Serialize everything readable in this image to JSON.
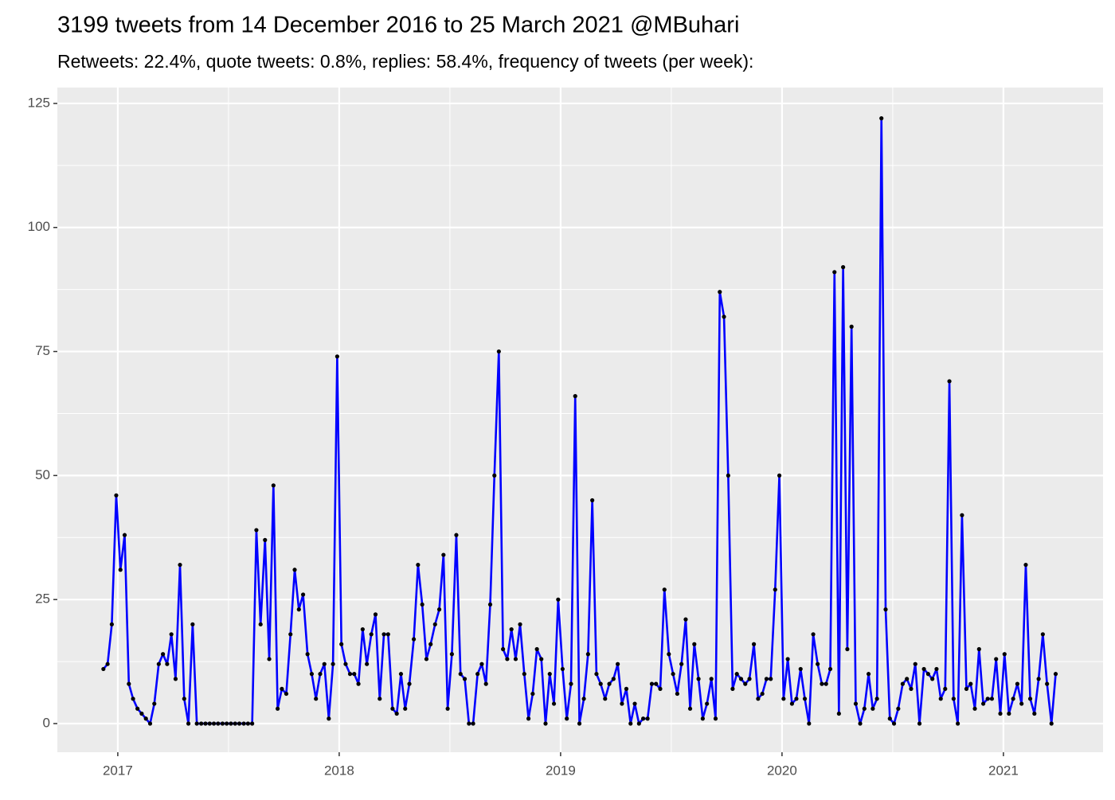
{
  "chart_data": {
    "type": "line",
    "title": "3199 tweets from 14 December 2016 to 25 March 2021 @MBuhari",
    "subtitle": "Retweets: 22.4%, quote tweets: 0.8%, replies: 58.4%, frequency of tweets (per week):",
    "color": "#0000ff",
    "point_color": "#000000",
    "grid": true,
    "xlim": [
      2016.727,
      2021.45
    ],
    "xticks": [
      2017,
      2018,
      2019,
      2020,
      2021
    ],
    "ylim": [
      -5.78,
      128.2
    ],
    "yticks": [
      0,
      25,
      50,
      75,
      100,
      125
    ],
    "x": [
      2016.935,
      2016.954,
      2016.973,
      2016.993,
      2017.012,
      2017.031,
      2017.05,
      2017.069,
      2017.089,
      2017.108,
      2017.127,
      2017.146,
      2017.165,
      2017.185,
      2017.204,
      2017.223,
      2017.242,
      2017.261,
      2017.281,
      2017.3,
      2017.319,
      2017.338,
      2017.357,
      2017.377,
      2017.396,
      2017.415,
      2017.434,
      2017.453,
      2017.473,
      2017.492,
      2017.511,
      2017.53,
      2017.549,
      2017.569,
      2017.588,
      2017.607,
      2017.626,
      2017.645,
      2017.665,
      2017.684,
      2017.703,
      2017.722,
      2017.741,
      2017.761,
      2017.78,
      2017.799,
      2017.818,
      2017.837,
      2017.857,
      2017.876,
      2017.895,
      2017.914,
      2017.933,
      2017.953,
      2017.972,
      2017.991,
      2018.01,
      2018.029,
      2018.049,
      2018.068,
      2018.087,
      2018.106,
      2018.125,
      2018.145,
      2018.164,
      2018.183,
      2018.202,
      2018.221,
      2018.241,
      2018.26,
      2018.279,
      2018.298,
      2018.317,
      2018.337,
      2018.356,
      2018.375,
      2018.394,
      2018.413,
      2018.433,
      2018.452,
      2018.471,
      2018.49,
      2018.509,
      2018.529,
      2018.548,
      2018.567,
      2018.586,
      2018.605,
      2018.625,
      2018.644,
      2018.663,
      2018.682,
      2018.701,
      2018.721,
      2018.74,
      2018.759,
      2018.778,
      2018.797,
      2018.817,
      2018.836,
      2018.855,
      2018.874,
      2018.893,
      2018.913,
      2018.932,
      2018.951,
      2018.97,
      2018.989,
      2019.009,
      2019.028,
      2019.047,
      2019.066,
      2019.085,
      2019.105,
      2019.124,
      2019.143,
      2019.162,
      2019.181,
      2019.201,
      2019.22,
      2019.239,
      2019.258,
      2019.277,
      2019.297,
      2019.316,
      2019.335,
      2019.354,
      2019.373,
      2019.393,
      2019.412,
      2019.431,
      2019.45,
      2019.469,
      2019.489,
      2019.508,
      2019.527,
      2019.546,
      2019.565,
      2019.585,
      2019.604,
      2019.623,
      2019.642,
      2019.661,
      2019.681,
      2019.7,
      2019.719,
      2019.738,
      2019.757,
      2019.777,
      2019.796,
      2019.815,
      2019.834,
      2019.853,
      2019.873,
      2019.892,
      2019.911,
      2019.93,
      2019.949,
      2019.969,
      2019.988,
      2020.007,
      2020.026,
      2020.045,
      2020.065,
      2020.084,
      2020.103,
      2020.122,
      2020.141,
      2020.161,
      2020.18,
      2020.199,
      2020.218,
      2020.237,
      2020.257,
      2020.276,
      2020.295,
      2020.314,
      2020.333,
      2020.353,
      2020.372,
      2020.391,
      2020.41,
      2020.429,
      2020.449,
      2020.468,
      2020.487,
      2020.506,
      2020.525,
      2020.545,
      2020.564,
      2020.583,
      2020.602,
      2020.621,
      2020.641,
      2020.66,
      2020.679,
      2020.698,
      2020.717,
      2020.737,
      2020.756,
      2020.775,
      2020.794,
      2020.813,
      2020.833,
      2020.852,
      2020.871,
      2020.89,
      2020.909,
      2020.929,
      2020.948,
      2020.967,
      2020.986,
      2021.005,
      2021.025,
      2021.044,
      2021.063,
      2021.082,
      2021.101,
      2021.121,
      2021.14,
      2021.159,
      2021.178,
      2021.197,
      2021.217,
      2021.236
    ],
    "values": [
      11,
      12,
      20,
      46,
      31,
      38,
      8,
      5,
      3,
      2,
      1,
      0,
      4,
      12,
      14,
      12,
      18,
      9,
      32,
      5,
      0,
      20,
      0,
      0,
      0,
      0,
      0,
      0,
      0,
      0,
      0,
      0,
      0,
      0,
      0,
      0,
      39,
      20,
      37,
      13,
      48,
      3,
      7,
      6,
      18,
      31,
      23,
      26,
      14,
      10,
      5,
      10,
      12,
      1,
      12,
      74,
      16,
      12,
      10,
      10,
      8,
      19,
      12,
      18,
      22,
      5,
      18,
      18,
      3,
      2,
      10,
      3,
      8,
      17,
      32,
      24,
      13,
      16,
      20,
      23,
      34,
      3,
      14,
      38,
      10,
      9,
      0,
      0,
      10,
      12,
      8,
      24,
      50,
      75,
      15,
      13,
      19,
      13,
      20,
      10,
      1,
      6,
      15,
      13,
      0,
      10,
      4,
      25,
      11,
      1,
      8,
      66,
      0,
      5,
      14,
      45,
      10,
      8,
      5,
      8,
      9,
      12,
      4,
      7,
      0,
      4,
      0,
      1,
      1,
      8,
      8,
      7,
      27,
      14,
      10,
      6,
      12,
      21,
      3,
      16,
      9,
      1,
      4,
      9,
      1,
      87,
      82,
      50,
      7,
      10,
      9,
      8,
      9,
      16,
      5,
      6,
      9,
      9,
      27,
      50,
      5,
      13,
      4,
      5,
      11,
      5,
      0,
      18,
      12,
      8,
      8,
      11,
      91,
      2,
      92,
      15,
      80,
      4,
      0,
      3,
      10,
      3,
      5,
      122,
      23,
      1,
      0,
      3,
      8,
      9,
      7,
      12,
      0,
      11,
      10,
      9,
      11,
      5,
      7,
      69,
      5,
      0,
      42,
      7,
      8,
      3,
      15,
      4,
      5,
      5,
      13,
      2,
      14,
      2,
      5,
      8,
      4,
      32,
      5,
      2,
      9,
      18,
      8,
      0,
      10
    ]
  }
}
